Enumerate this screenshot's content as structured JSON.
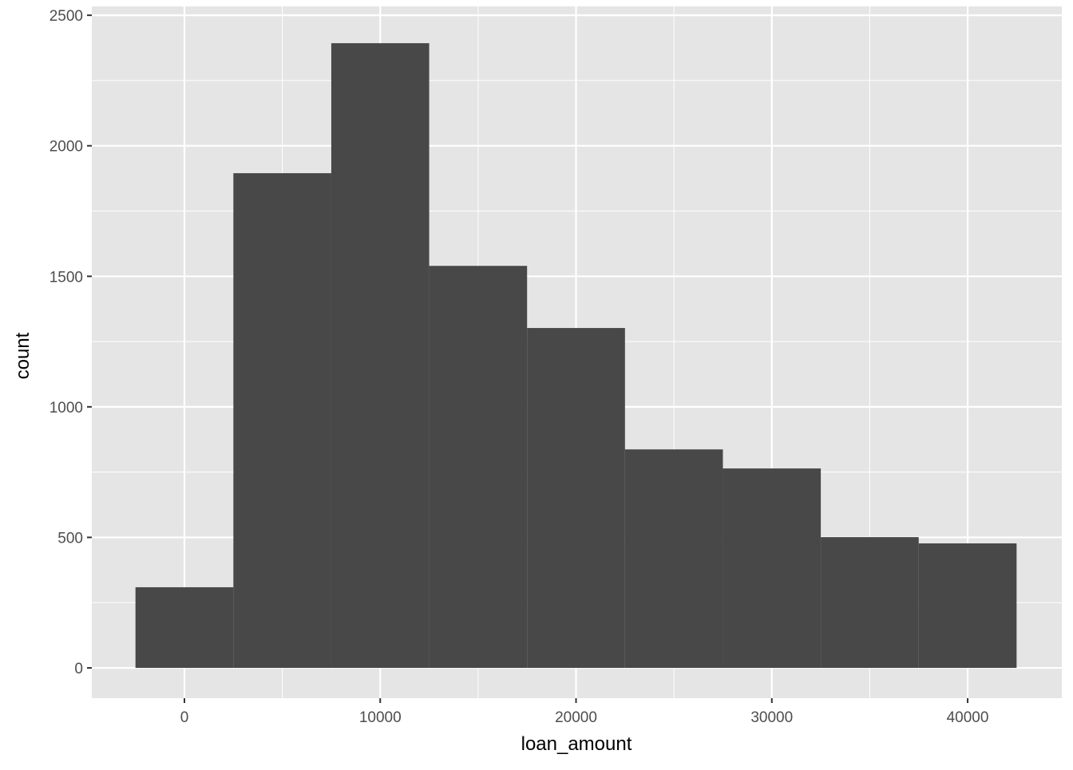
{
  "chart_data": {
    "type": "bar",
    "subtype": "histogram",
    "xlabel": "loan_amount",
    "ylabel": "count",
    "bin_width": 5000,
    "bins": [
      {
        "x_min": -2500,
        "x_max": 2500,
        "count": 309
      },
      {
        "x_min": 2500,
        "x_max": 7500,
        "count": 1895
      },
      {
        "x_min": 7500,
        "x_max": 12500,
        "count": 2393
      },
      {
        "x_min": 12500,
        "x_max": 17500,
        "count": 1540
      },
      {
        "x_min": 17500,
        "x_max": 22500,
        "count": 1302
      },
      {
        "x_min": 22500,
        "x_max": 27500,
        "count": 837
      },
      {
        "x_min": 27500,
        "x_max": 32500,
        "count": 764
      },
      {
        "x_min": 32500,
        "x_max": 37500,
        "count": 501
      },
      {
        "x_min": 37500,
        "x_max": 42500,
        "count": 477
      }
    ],
    "xlim": [
      -4730,
      44810
    ],
    "ylim": [
      -116,
      2534
    ],
    "x_ticks": [
      0,
      10000,
      20000,
      30000,
      40000
    ],
    "x_tick_labels": [
      "0",
      "10000",
      "20000",
      "30000",
      "40000"
    ],
    "y_ticks": [
      0,
      500,
      1000,
      1500,
      2000,
      2500
    ],
    "y_tick_labels": [
      "0",
      "500",
      "1000",
      "1500",
      "2000",
      "2500"
    ],
    "grid": true,
    "colors": {
      "panel": "#e5e5e5",
      "grid": "#ffffff",
      "bar": "#484848",
      "text": "#4d4d4d",
      "title": "#000000"
    }
  }
}
